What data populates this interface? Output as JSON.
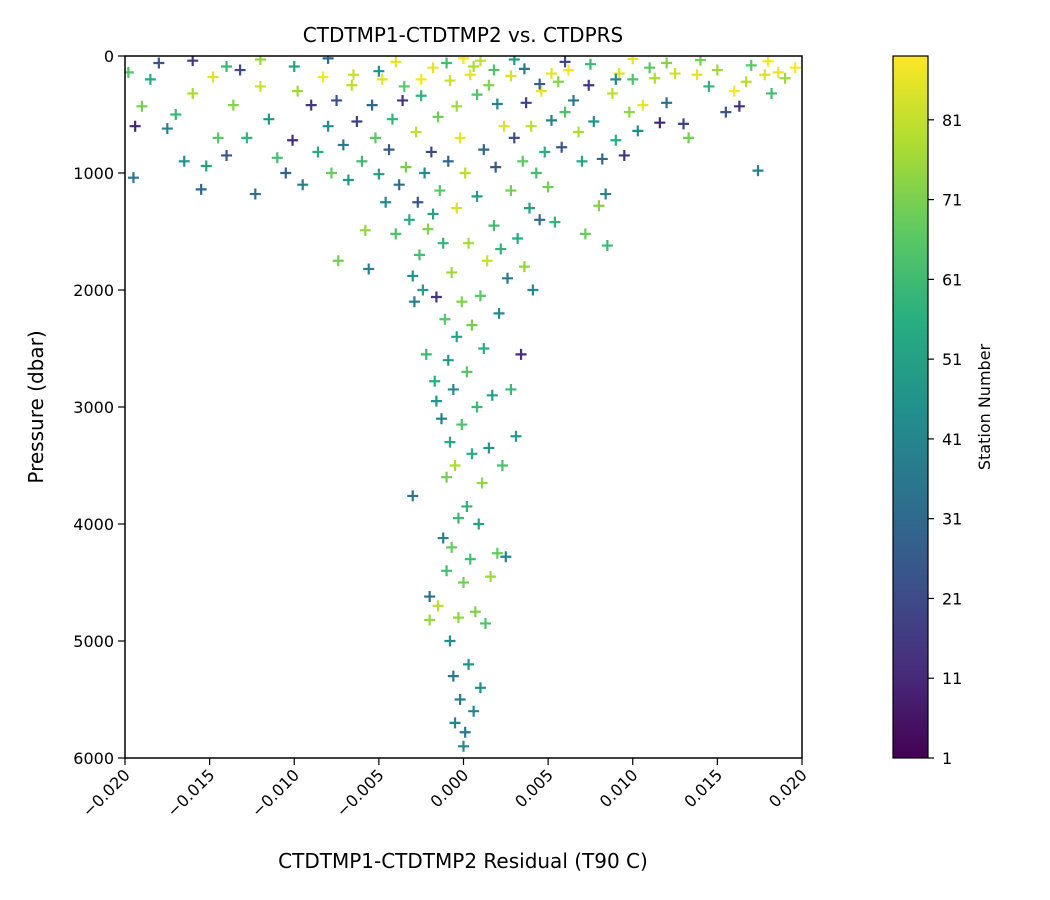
{
  "chart_data": {
    "type": "scatter",
    "title": "CTDTMP1-CTDTMP2 vs. CTDPRS",
    "xlabel": "CTDTMP1-CTDTMP2 Residual (T90 C)",
    "ylabel": "Pressure (dbar)",
    "xlim": [
      -0.02,
      0.02
    ],
    "ylim": [
      6000,
      0
    ],
    "y_inverted": true,
    "x_ticks": [
      -0.02,
      -0.015,
      -0.01,
      -0.005,
      0.0,
      0.005,
      0.01,
      0.015,
      0.02
    ],
    "x_tick_labels": [
      "−0.020",
      "−0.015",
      "−0.010",
      "−0.005",
      "0.000",
      "0.005",
      "0.010",
      "0.015",
      "0.020"
    ],
    "y_ticks": [
      0,
      1000,
      2000,
      3000,
      4000,
      5000,
      6000
    ],
    "y_tick_labels": [
      "0",
      "1000",
      "2000",
      "3000",
      "4000",
      "5000",
      "6000"
    ],
    "marker": "plus",
    "grid": false,
    "colorbar": {
      "label": "Station Number",
      "colormap": "viridis",
      "range": [
        1,
        89
      ],
      "ticks": [
        1,
        11,
        21,
        31,
        41,
        51,
        61,
        71,
        81
      ],
      "tick_labels": [
        "1",
        "11",
        "21",
        "31",
        "41",
        "51",
        "61",
        "71",
        "81"
      ]
    },
    "points": [
      [
        -0.0198,
        140,
        65
      ],
      [
        -0.0195,
        1040,
        35
      ],
      [
        -0.0194,
        600,
        10
      ],
      [
        -0.019,
        430,
        70
      ],
      [
        -0.0185,
        200,
        55
      ],
      [
        -0.0175,
        620,
        40
      ],
      [
        -0.017,
        500,
        60
      ],
      [
        -0.0165,
        900,
        45
      ],
      [
        -0.016,
        320,
        78
      ],
      [
        -0.0155,
        1140,
        30
      ],
      [
        -0.0152,
        940,
        52
      ],
      [
        -0.0148,
        180,
        85
      ],
      [
        -0.0145,
        700,
        66
      ],
      [
        -0.014,
        850,
        25
      ],
      [
        -0.0136,
        420,
        72
      ],
      [
        -0.0132,
        120,
        20
      ],
      [
        -0.0128,
        700,
        58
      ],
      [
        -0.0123,
        1180,
        33
      ],
      [
        -0.012,
        260,
        82
      ],
      [
        -0.0115,
        540,
        47
      ],
      [
        -0.011,
        870,
        62
      ],
      [
        -0.0105,
        1000,
        28
      ],
      [
        -0.0101,
        720,
        12
      ],
      [
        -0.0098,
        300,
        76
      ],
      [
        -0.0095,
        1100,
        38
      ],
      [
        -0.009,
        420,
        15
      ],
      [
        -0.0086,
        820,
        55
      ],
      [
        -0.0083,
        180,
        88
      ],
      [
        -0.008,
        600,
        44
      ],
      [
        -0.0078,
        1000,
        68
      ],
      [
        -0.0075,
        380,
        22
      ],
      [
        -0.0074,
        1750,
        70
      ],
      [
        -0.0071,
        760,
        36
      ],
      [
        -0.0068,
        1060,
        48
      ],
      [
        -0.0066,
        250,
        80
      ],
      [
        -0.0063,
        560,
        18
      ],
      [
        -0.006,
        900,
        60
      ],
      [
        -0.0058,
        1490,
        74
      ],
      [
        -0.0056,
        1820,
        40
      ],
      [
        -0.0054,
        420,
        30
      ],
      [
        -0.0052,
        700,
        66
      ],
      [
        -0.005,
        1010,
        50
      ],
      [
        -0.0048,
        200,
        85
      ],
      [
        -0.0046,
        1250,
        42
      ],
      [
        -0.0044,
        800,
        26
      ],
      [
        -0.0042,
        540,
        58
      ],
      [
        -0.004,
        1520,
        64
      ],
      [
        -0.0038,
        1100,
        32
      ],
      [
        -0.0036,
        380,
        14
      ],
      [
        -0.0034,
        950,
        70
      ],
      [
        -0.0032,
        1400,
        55
      ],
      [
        -0.003,
        3760,
        35
      ],
      [
        -0.003,
        1880,
        45
      ],
      [
        -0.0029,
        2100,
        38
      ],
      [
        -0.0028,
        650,
        81
      ],
      [
        -0.0027,
        1250,
        24
      ],
      [
        -0.0026,
        1700,
        62
      ],
      [
        -0.0025,
        200,
        88
      ],
      [
        -0.0024,
        2000,
        50
      ],
      [
        -0.0023,
        1000,
        44
      ],
      [
        -0.0022,
        2550,
        60
      ],
      [
        -0.0021,
        1480,
        72
      ],
      [
        -0.002,
        4620,
        33
      ],
      [
        -0.002,
        4820,
        75
      ],
      [
        -0.0019,
        820,
        20
      ],
      [
        -0.0018,
        1350,
        52
      ],
      [
        -0.0017,
        2780,
        56
      ],
      [
        -0.0016,
        2060,
        14
      ],
      [
        -0.0016,
        2950,
        46
      ],
      [
        -0.0015,
        4700,
        80
      ],
      [
        -0.0014,
        1150,
        66
      ],
      [
        -0.0013,
        3100,
        38
      ],
      [
        -0.0012,
        4120,
        40
      ],
      [
        -0.0012,
        1600,
        58
      ],
      [
        -0.0011,
        2250,
        66
      ],
      [
        -0.001,
        3600,
        70
      ],
      [
        -0.001,
        4400,
        62
      ],
      [
        -0.0009,
        900,
        30
      ],
      [
        -0.0009,
        2600,
        48
      ],
      [
        -0.0008,
        3300,
        54
      ],
      [
        -0.0008,
        5000,
        44
      ],
      [
        -0.0007,
        1850,
        76
      ],
      [
        -0.0007,
        4200,
        68
      ],
      [
        -0.0006,
        2850,
        42
      ],
      [
        -0.0006,
        5300,
        36
      ],
      [
        -0.0005,
        3500,
        78
      ],
      [
        -0.0005,
        5700,
        40
      ],
      [
        -0.0004,
        1300,
        84
      ],
      [
        -0.0004,
        2400,
        52
      ],
      [
        -0.0003,
        4800,
        74
      ],
      [
        -0.0003,
        3950,
        60
      ],
      [
        -0.0002,
        700,
        86
      ],
      [
        -0.0002,
        5500,
        38
      ],
      [
        -0.0001,
        3150,
        64
      ],
      [
        -0.0001,
        2100,
        72
      ],
      [
        0.0,
        5900,
        42
      ],
      [
        0.0,
        4500,
        70
      ],
      [
        0.0001,
        5780,
        36
      ],
      [
        0.0001,
        1000,
        80
      ],
      [
        0.0002,
        3850,
        58
      ],
      [
        0.0002,
        2700,
        66
      ],
      [
        0.0003,
        5200,
        46
      ],
      [
        0.0003,
        1600,
        77
      ],
      [
        0.0004,
        4300,
        62
      ],
      [
        0.0005,
        3400,
        55
      ],
      [
        0.0005,
        2300,
        70
      ],
      [
        0.0006,
        5600,
        40
      ],
      [
        0.0007,
        4750,
        72
      ],
      [
        0.0008,
        1200,
        48
      ],
      [
        0.0008,
        3000,
        60
      ],
      [
        0.0009,
        4000,
        52
      ],
      [
        0.001,
        2050,
        66
      ],
      [
        0.001,
        5400,
        44
      ],
      [
        0.0011,
        3650,
        74
      ],
      [
        0.0012,
        800,
        30
      ],
      [
        0.0012,
        2500,
        56
      ],
      [
        0.0013,
        4850,
        64
      ],
      [
        0.0014,
        1750,
        82
      ],
      [
        0.0015,
        3350,
        46
      ],
      [
        0.0016,
        4450,
        76
      ],
      [
        0.0017,
        2900,
        50
      ],
      [
        0.0018,
        1450,
        62
      ],
      [
        0.0019,
        950,
        25
      ],
      [
        0.002,
        4250,
        68
      ],
      [
        0.0021,
        2200,
        44
      ],
      [
        0.0022,
        1650,
        58
      ],
      [
        0.0023,
        3500,
        63
      ],
      [
        0.0024,
        600,
        84
      ],
      [
        0.0025,
        4280,
        40
      ],
      [
        0.0026,
        1900,
        36
      ],
      [
        0.0028,
        1150,
        70
      ],
      [
        0.0028,
        2850,
        60
      ],
      [
        0.003,
        700,
        22
      ],
      [
        0.0031,
        3250,
        48
      ],
      [
        0.0032,
        1560,
        54
      ],
      [
        0.0034,
        2550,
        12
      ],
      [
        0.0035,
        900,
        66
      ],
      [
        0.0036,
        1800,
        74
      ],
      [
        0.0037,
        400,
        18
      ],
      [
        0.0039,
        1300,
        50
      ],
      [
        0.004,
        600,
        80
      ],
      [
        0.0041,
        2000,
        43
      ],
      [
        0.0043,
        1000,
        62
      ],
      [
        0.0045,
        1400,
        30
      ],
      [
        0.0046,
        300,
        86
      ],
      [
        0.0048,
        820,
        56
      ],
      [
        0.005,
        1120,
        70
      ],
      [
        0.0052,
        550,
        40
      ],
      [
        0.0054,
        1420,
        58
      ],
      [
        0.0056,
        220,
        72
      ],
      [
        0.0058,
        780,
        24
      ],
      [
        0.006,
        480,
        64
      ],
      [
        0.0062,
        120,
        88
      ],
      [
        0.0065,
        380,
        36
      ],
      [
        0.0068,
        650,
        78
      ],
      [
        0.007,
        900,
        52
      ],
      [
        0.0072,
        1520,
        68
      ],
      [
        0.0074,
        250,
        15
      ],
      [
        0.0077,
        560,
        46
      ],
      [
        0.008,
        1280,
        72
      ],
      [
        0.0082,
        880,
        30
      ],
      [
        0.0084,
        1180,
        40
      ],
      [
        0.0085,
        1620,
        60
      ],
      [
        0.0088,
        320,
        80
      ],
      [
        0.009,
        720,
        56
      ],
      [
        0.0092,
        150,
        84
      ],
      [
        0.0095,
        850,
        14
      ],
      [
        0.0098,
        480,
        74
      ],
      [
        0.01,
        200,
        64
      ],
      [
        0.0103,
        640,
        44
      ],
      [
        0.0106,
        420,
        86
      ],
      [
        0.011,
        100,
        66
      ],
      [
        0.0113,
        190,
        78
      ],
      [
        0.0116,
        570,
        10
      ],
      [
        0.012,
        400,
        33
      ],
      [
        0.0125,
        150,
        82
      ],
      [
        0.013,
        580,
        18
      ],
      [
        0.0133,
        700,
        70
      ],
      [
        0.0138,
        160,
        86
      ],
      [
        0.0145,
        260,
        58
      ],
      [
        0.015,
        120,
        76
      ],
      [
        0.0155,
        480,
        24
      ],
      [
        0.016,
        300,
        88
      ],
      [
        0.0163,
        430,
        12
      ],
      [
        0.0167,
        220,
        80
      ],
      [
        0.017,
        80,
        66
      ],
      [
        0.0174,
        980,
        40
      ],
      [
        0.0178,
        160,
        84
      ],
      [
        0.0182,
        320,
        62
      ],
      [
        0.0186,
        140,
        86
      ],
      [
        0.019,
        190,
        76
      ],
      [
        0.0196,
        100,
        88
      ],
      [
        -0.016,
        40,
        15
      ],
      [
        -0.012,
        30,
        75
      ],
      [
        -0.008,
        20,
        30
      ],
      [
        -0.004,
        50,
        86
      ],
      [
        -0.001,
        60,
        62
      ],
      [
        0.0,
        20,
        88
      ],
      [
        0.001,
        40,
        80
      ],
      [
        0.003,
        30,
        50
      ],
      [
        0.006,
        50,
        20
      ],
      [
        0.01,
        25,
        86
      ],
      [
        0.014,
        35,
        70
      ],
      [
        0.018,
        45,
        88
      ],
      [
        -0.005,
        130,
        45
      ],
      [
        -0.0025,
        340,
        58
      ],
      [
        -0.0015,
        520,
        70
      ],
      [
        -0.0008,
        210,
        82
      ],
      [
        -0.0004,
        430,
        76
      ],
      [
        0.0004,
        160,
        86
      ],
      [
        0.0008,
        330,
        64
      ],
      [
        0.0015,
        250,
        72
      ],
      [
        0.002,
        410,
        40
      ],
      [
        0.0028,
        170,
        84
      ],
      [
        0.0045,
        240,
        28
      ],
      [
        0.0075,
        70,
        60
      ],
      [
        -0.0065,
        160,
        82
      ],
      [
        -0.01,
        90,
        52
      ],
      [
        -0.014,
        90,
        60
      ],
      [
        -0.018,
        60,
        24
      ],
      [
        -0.0035,
        260,
        66
      ],
      [
        -0.0018,
        100,
        86
      ],
      [
        0.0006,
        90,
        78
      ],
      [
        0.0018,
        120,
        64
      ],
      [
        0.0036,
        110,
        36
      ],
      [
        0.0052,
        150,
        85
      ],
      [
        0.009,
        200,
        42
      ],
      [
        0.012,
        60,
        72
      ]
    ]
  }
}
